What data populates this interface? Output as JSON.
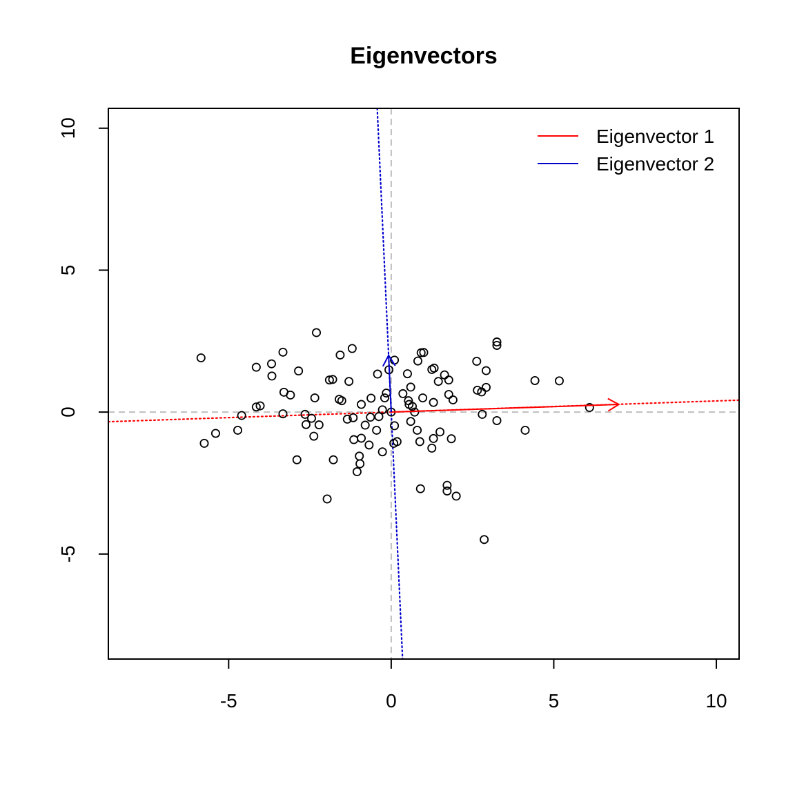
{
  "chart_data": {
    "type": "scatter",
    "title": "Eigenvectors",
    "xlabel": "",
    "ylabel": "",
    "xlim": [
      -8.7,
      10.7
    ],
    "ylim": [
      -8.7,
      10.7
    ],
    "x_ticks": [
      {
        "value": -5,
        "label": "-5"
      },
      {
        "value": 0,
        "label": "0"
      },
      {
        "value": 5,
        "label": "5"
      },
      {
        "value": 10,
        "label": "10"
      }
    ],
    "y_ticks": [
      {
        "value": -5,
        "label": "-5"
      },
      {
        "value": 0,
        "label": "0"
      },
      {
        "value": 5,
        "label": "5"
      },
      {
        "value": 10,
        "label": "10"
      }
    ],
    "grid": false,
    "legend": {
      "position": "top-right",
      "entries": [
        {
          "label": "Eigenvector 1",
          "color": "#ff0000"
        },
        {
          "label": "Eigenvector 2",
          "color": "#0000cd"
        }
      ]
    },
    "reference_lines": {
      "h": 0,
      "v": 0,
      "color": "#bebebe",
      "style": "dashed"
    },
    "eigenvectors": [
      {
        "name": "Eigenvector 1",
        "color": "#ff0000",
        "x": 7.0,
        "y": 0.27
      },
      {
        "name": "Eigenvector 2",
        "color": "#0000cd",
        "x": -0.08,
        "y": 2.0
      }
    ],
    "eigen_lines": [
      {
        "color": "#ff0000",
        "x1": -8.7,
        "y1": -0.34,
        "x2": 10.7,
        "y2": 0.42
      },
      {
        "color": "#0000cd",
        "x1": -0.43,
        "y1": 10.7,
        "x2": 0.35,
        "y2": -8.7
      }
    ],
    "points": [
      [
        -5.85,
        1.91
      ],
      [
        -5.75,
        -1.1
      ],
      [
        -5.4,
        -0.75
      ],
      [
        -4.72,
        -0.64
      ],
      [
        -4.6,
        -0.12
      ],
      [
        -4.15,
        1.58
      ],
      [
        -4.15,
        0.18
      ],
      [
        -4.03,
        0.22
      ],
      [
        -3.68,
        1.7
      ],
      [
        -3.67,
        1.27
      ],
      [
        -3.33,
        2.11
      ],
      [
        -3.3,
        0.7
      ],
      [
        -3.33,
        -0.06
      ],
      [
        -3.1,
        0.6
      ],
      [
        -2.85,
        1.45
      ],
      [
        -2.9,
        -1.68
      ],
      [
        -2.65,
        -0.08
      ],
      [
        -2.62,
        -0.44
      ],
      [
        -2.45,
        -0.22
      ],
      [
        -2.38,
        -0.85
      ],
      [
        -2.35,
        0.5
      ],
      [
        -2.3,
        2.8
      ],
      [
        -2.22,
        -0.45
      ],
      [
        -1.97,
        -3.06
      ],
      [
        -1.9,
        1.13
      ],
      [
        -1.8,
        1.15
      ],
      [
        -1.78,
        -1.68
      ],
      [
        -1.6,
        0.45
      ],
      [
        -1.57,
        2.01
      ],
      [
        -1.52,
        0.4
      ],
      [
        -1.35,
        -0.25
      ],
      [
        -1.3,
        1.08
      ],
      [
        -1.2,
        2.24
      ],
      [
        -1.15,
        -0.97
      ],
      [
        -1.17,
        -0.2
      ],
      [
        -1.05,
        -2.1
      ],
      [
        -0.98,
        -1.55
      ],
      [
        -0.96,
        -1.82
      ],
      [
        -0.92,
        0.27
      ],
      [
        -0.92,
        -0.92
      ],
      [
        -0.8,
        -0.46
      ],
      [
        -0.68,
        -1.16
      ],
      [
        -0.64,
        -0.18
      ],
      [
        -0.62,
        0.49
      ],
      [
        -0.45,
        -0.64
      ],
      [
        -0.42,
        1.34
      ],
      [
        -0.38,
        -0.16
      ],
      [
        -0.27,
        0.08
      ],
      [
        -0.27,
        -1.4
      ],
      [
        -0.2,
        0.5
      ],
      [
        -0.15,
        0.67
      ],
      [
        -0.07,
        1.49
      ],
      [
        0.0,
        0.0
      ],
      [
        0.1,
        1.83
      ],
      [
        0.08,
        -1.1
      ],
      [
        0.1,
        -0.48
      ],
      [
        0.18,
        -1.04
      ],
      [
        0.36,
        0.65
      ],
      [
        0.5,
        1.35
      ],
      [
        0.53,
        0.4
      ],
      [
        0.55,
        0.27
      ],
      [
        0.6,
        0.88
      ],
      [
        0.6,
        -0.33
      ],
      [
        0.65,
        0.2
      ],
      [
        0.72,
        0.0
      ],
      [
        0.82,
        1.8
      ],
      [
        0.8,
        -0.64
      ],
      [
        0.88,
        -1.04
      ],
      [
        0.92,
        2.09
      ],
      [
        0.9,
        -2.7
      ],
      [
        0.97,
        0.5
      ],
      [
        1.0,
        2.1
      ],
      [
        1.25,
        1.5
      ],
      [
        1.32,
        1.55
      ],
      [
        1.3,
        0.34
      ],
      [
        1.25,
        -1.27
      ],
      [
        1.3,
        -0.93
      ],
      [
        1.45,
        1.08
      ],
      [
        1.5,
        -0.7
      ],
      [
        1.64,
        1.31
      ],
      [
        1.72,
        -2.58
      ],
      [
        1.72,
        -2.78
      ],
      [
        1.77,
        1.13
      ],
      [
        1.77,
        0.62
      ],
      [
        1.85,
        -0.94
      ],
      [
        1.9,
        0.43
      ],
      [
        2.0,
        -2.96
      ],
      [
        2.63,
        1.79
      ],
      [
        2.65,
        0.77
      ],
      [
        2.78,
        0.71
      ],
      [
        2.8,
        -0.08
      ],
      [
        2.92,
        0.87
      ],
      [
        2.92,
        1.46
      ],
      [
        2.86,
        -4.49
      ],
      [
        3.25,
        2.47
      ],
      [
        3.25,
        2.35
      ],
      [
        3.25,
        -0.3
      ],
      [
        4.12,
        -0.64
      ],
      [
        4.42,
        1.11
      ],
      [
        5.17,
        1.1
      ],
      [
        6.1,
        0.16
      ]
    ]
  }
}
